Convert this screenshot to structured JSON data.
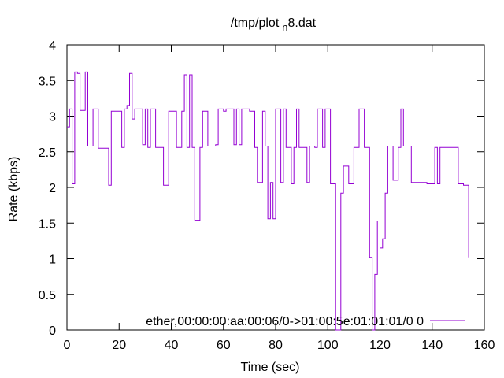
{
  "chart_data": {
    "type": "line",
    "title": "/tmp/plot",
    "title_sub": "n",
    "title_suffix": "8.dat",
    "xlabel": "Time (sec)",
    "ylabel": "Rate (kbps)",
    "xlim": [
      0,
      160
    ],
    "ylim": [
      0,
      4
    ],
    "xticks": [
      0,
      20,
      40,
      60,
      80,
      100,
      120,
      140,
      160
    ],
    "yticks": [
      0,
      0.5,
      1,
      1.5,
      2,
      2.5,
      3,
      3.5,
      4
    ],
    "grid": false,
    "legend_position": "bottom-right",
    "line_style": "steps",
    "series_color": "#9400d3",
    "series": [
      {
        "name": "ether,00:00:00:aa:00:06/0->01:00:5e:01:01:01/0 0",
        "x": [
          0,
          1,
          2,
          3,
          4,
          5,
          7,
          8,
          9,
          10,
          12,
          13,
          14,
          16,
          17,
          19,
          21,
          22,
          23,
          24,
          25,
          26,
          29,
          30,
          31,
          32,
          34,
          35,
          36,
          37,
          39,
          40,
          42,
          44,
          45,
          46,
          47,
          48,
          49,
          51,
          52,
          54,
          55,
          57,
          58,
          60,
          61,
          62,
          64,
          65,
          66,
          67,
          70,
          72,
          73,
          74,
          75,
          76,
          77,
          78,
          79,
          80,
          82,
          83,
          84,
          86,
          87,
          88,
          89,
          90,
          92,
          93,
          95,
          96,
          98,
          99,
          101,
          103,
          105,
          106,
          108,
          110,
          112,
          114,
          116,
          117,
          118,
          119,
          120,
          121,
          122,
          123,
          125,
          127,
          128,
          129,
          130,
          132,
          134,
          136,
          138,
          140,
          141,
          142,
          143,
          144,
          146,
          148,
          150,
          151,
          152,
          154
        ],
        "y": [
          2.85,
          3.1,
          2.05,
          3.62,
          3.6,
          3.08,
          3.62,
          2.58,
          2.58,
          3.1,
          2.55,
          2.55,
          2.55,
          2.03,
          3.07,
          3.07,
          2.56,
          3.1,
          3.15,
          3.6,
          2.96,
          3.1,
          2.6,
          3.1,
          2.56,
          3.1,
          2.56,
          2.56,
          2.56,
          2.03,
          3.07,
          3.07,
          2.56,
          3.07,
          3.58,
          2.56,
          3.58,
          2.56,
          1.54,
          2.56,
          3.07,
          2.58,
          2.58,
          2.6,
          3.1,
          3.07,
          3.1,
          3.1,
          2.6,
          3.1,
          2.6,
          3.1,
          3.07,
          2.56,
          2.07,
          2.07,
          3.07,
          2.58,
          1.56,
          2.07,
          1.56,
          3.1,
          2.07,
          3.1,
          2.56,
          2.05,
          2.56,
          3.1,
          2.56,
          2.56,
          2.07,
          2.58,
          2.56,
          3.1,
          2.56,
          3.1,
          2.05,
          0,
          1.92,
          2.3,
          2.05,
          2.56,
          3.1,
          2.56,
          1.02,
          0,
          0.78,
          1.53,
          1.15,
          1.28,
          1.92,
          2.58,
          2.1,
          2.56,
          3.1,
          2.58,
          2.58,
          2.07,
          2.07,
          2.07,
          2.05,
          2.05,
          2.56,
          2.05,
          2.56,
          2.56,
          2.56,
          2.56,
          2.05,
          2.05,
          2.03,
          1.02
        ]
      }
    ]
  }
}
